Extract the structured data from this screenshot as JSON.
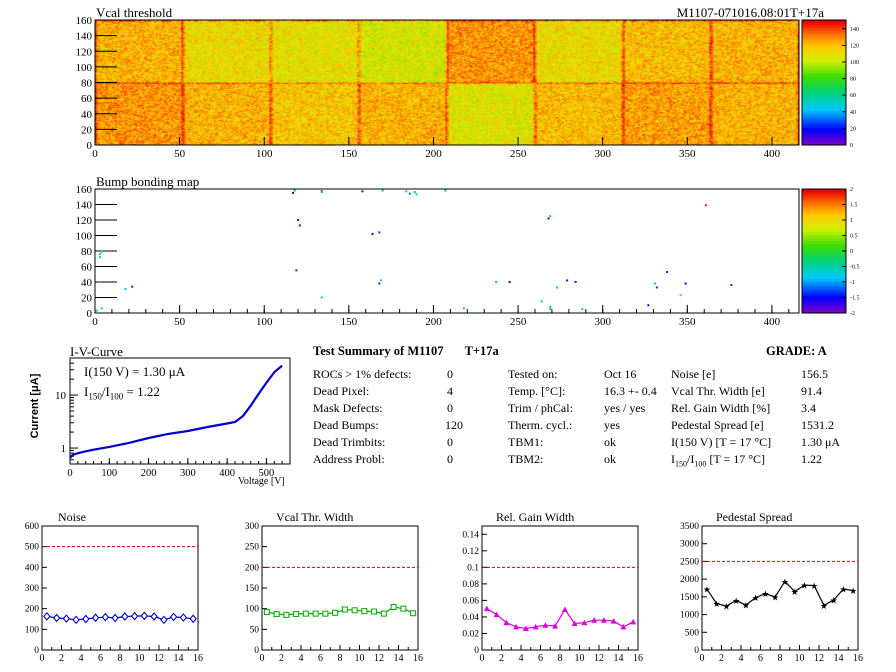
{
  "header": {
    "module_id": "M1107-071016.08:01T+17a"
  },
  "vcal_map": {
    "title": "Vcal threshold",
    "x_ticks": [
      "0",
      "50",
      "100",
      "150",
      "200",
      "250",
      "300",
      "350",
      "400"
    ],
    "y_ticks": [
      "0",
      "20",
      "40",
      "60",
      "80",
      "100",
      "120",
      "140",
      "160"
    ],
    "color_scale": [
      "0",
      "20",
      "40",
      "60",
      "80",
      "100",
      "120",
      "140"
    ],
    "chart_data": {
      "type": "heatmap",
      "title": "Vcal threshold",
      "xlim": [
        0,
        416
      ],
      "ylim": [
        0,
        160
      ],
      "zlim": [
        0,
        150
      ],
      "rocs_bottom_mean": [
        128,
        122,
        118,
        122,
        108,
        120,
        126,
        122
      ],
      "rocs_top_mean": [
        122,
        112,
        110,
        106,
        128,
        112,
        120,
        122
      ]
    }
  },
  "bump_map": {
    "title": "Bump bonding map",
    "x_ticks": [
      "0",
      "50",
      "100",
      "150",
      "200",
      "250",
      "300",
      "350",
      "400"
    ],
    "y_ticks": [
      "0",
      "20",
      "40",
      "60",
      "80",
      "100",
      "120",
      "140",
      "160"
    ],
    "color_scale": [
      "-2",
      "-1.5",
      "-1",
      "-0.5",
      "0",
      "0.5",
      "1",
      "1.5",
      "2"
    ],
    "chart_data": {
      "type": "scatter",
      "title": "Bump bonding map",
      "xlim": [
        0,
        416
      ],
      "ylim": [
        0,
        160
      ],
      "zlim": [
        -2,
        2
      ],
      "points": [
        {
          "x": 3,
          "y": 76,
          "z": -0.3
        },
        {
          "x": 3,
          "y": 72,
          "z": -0.5
        },
        {
          "x": 4,
          "y": 79,
          "z": -0.7
        },
        {
          "x": 3,
          "y": 40,
          "z": 0.1
        },
        {
          "x": 1,
          "y": 3,
          "z": -0.9
        },
        {
          "x": 4,
          "y": 6,
          "z": -0.6
        },
        {
          "x": 18,
          "y": 31,
          "z": -0.8
        },
        {
          "x": 22,
          "y": 34,
          "z": -1.9
        },
        {
          "x": 117,
          "y": 155,
          "z": -1.5
        },
        {
          "x": 118,
          "y": 158,
          "z": -0.4
        },
        {
          "x": 120,
          "y": 120,
          "z": -1.9
        },
        {
          "x": 121,
          "y": 113,
          "z": -1.8
        },
        {
          "x": 119,
          "y": 55,
          "z": -1.9
        },
        {
          "x": 134,
          "y": 157,
          "z": -1.5
        },
        {
          "x": 134,
          "y": 156,
          "z": -0.3
        },
        {
          "x": 134,
          "y": 20,
          "z": -0.9
        },
        {
          "x": 158,
          "y": 157,
          "z": -1.9
        },
        {
          "x": 164,
          "y": 102,
          "z": -1.5
        },
        {
          "x": 168,
          "y": 104,
          "z": -1.3
        },
        {
          "x": 168,
          "y": 38,
          "z": -1.9
        },
        {
          "x": 169,
          "y": 42,
          "z": -0.4
        },
        {
          "x": 170,
          "y": 158,
          "z": -0.2
        },
        {
          "x": 184,
          "y": 157,
          "z": -0.6
        },
        {
          "x": 186,
          "y": 154,
          "z": -1.2
        },
        {
          "x": 189,
          "y": 156,
          "z": -0.3
        },
        {
          "x": 190,
          "y": 153,
          "z": -0.9
        },
        {
          "x": 207,
          "y": 158,
          "z": -0.1
        },
        {
          "x": 218,
          "y": 6,
          "z": -0.3
        },
        {
          "x": 237,
          "y": 40,
          "z": -0.3
        },
        {
          "x": 245,
          "y": 40,
          "z": -1.5
        },
        {
          "x": 268,
          "y": 122,
          "z": -1.8
        },
        {
          "x": 269,
          "y": 125,
          "z": -0.3
        },
        {
          "x": 264,
          "y": 15,
          "z": -0.4
        },
        {
          "x": 269,
          "y": 8,
          "z": -1.0
        },
        {
          "x": 269,
          "y": 5,
          "z": -0.6
        },
        {
          "x": 273,
          "y": 33,
          "z": -0.8
        },
        {
          "x": 279,
          "y": 42,
          "z": -1.7
        },
        {
          "x": 284,
          "y": 40,
          "z": -1.4
        },
        {
          "x": 288,
          "y": 5,
          "z": -0.8
        },
        {
          "x": 327,
          "y": 10,
          "z": -1.5
        },
        {
          "x": 331,
          "y": 38,
          "z": -0.5
        },
        {
          "x": 332,
          "y": 33,
          "z": -1.9
        },
        {
          "x": 338,
          "y": 53,
          "z": -1.8
        },
        {
          "x": 346,
          "y": 23,
          "z": 0.2
        },
        {
          "x": 349,
          "y": 38,
          "z": -1.5
        },
        {
          "x": 361,
          "y": 139,
          "z": 1.9
        },
        {
          "x": 376,
          "y": 36,
          "z": -1.9
        }
      ]
    }
  },
  "iv_curve": {
    "title": "I-V-Curve",
    "annotation_1": "I(150 V) = 1.30 μA",
    "annotation_2_prefix": "I",
    "annotation_2_sub1": "150",
    "annotation_2_slash": "/I",
    "annotation_2_sub2": "100",
    "annotation_2_value": " =  1.22",
    "ylabel": "Current [μA]",
    "xlabel": "Voltage [V]",
    "x_ticks": [
      "0",
      "100",
      "200",
      "300",
      "400",
      "500"
    ],
    "y_ticks": [
      "1",
      "10"
    ],
    "chart_data": {
      "type": "line",
      "title": "I-V-Curve",
      "xlabel": "Voltage [V]",
      "ylabel": "Current [μA]",
      "xlim": [
        0,
        560
      ],
      "ylim": [
        0.5,
        50
      ],
      "y_scale": "log",
      "x": [
        0,
        5,
        10,
        20,
        40,
        60,
        80,
        100,
        150,
        200,
        250,
        300,
        350,
        400,
        420,
        440,
        460,
        480,
        500,
        520,
        540
      ],
      "y": [
        0.65,
        0.72,
        0.76,
        0.8,
        0.87,
        0.93,
        0.99,
        1.05,
        1.25,
        1.55,
        1.85,
        2.1,
        2.5,
        2.9,
        3.1,
        4.0,
        6.3,
        10.5,
        17.0,
        27.0,
        36.0
      ]
    }
  },
  "summary": {
    "title": "Test Summary of M1107",
    "test_label": "T+17a",
    "grade_label": "GRADE:  A",
    "col1": [
      {
        "label": "ROCs > 1% defects:",
        "value": "0"
      },
      {
        "label": "Dead Pixel:",
        "value": "4"
      },
      {
        "label": "Mask Defects:",
        "value": "0"
      },
      {
        "label": "Dead Bumps:",
        "value": "120"
      },
      {
        "label": "Dead Trimbits:",
        "value": "0"
      },
      {
        "label": "Address Probl:",
        "value": "0"
      }
    ],
    "col2": [
      {
        "label": "Tested on:",
        "value": "Oct 16"
      },
      {
        "label": "Temp. [°C]:",
        "value": "16.3 +- 0.4"
      },
      {
        "label": "Trim / phCal:",
        "value": "yes / yes"
      },
      {
        "label": "Therm. cycl.:",
        "value": "yes"
      },
      {
        "label": "TBM1:",
        "value": "ok"
      },
      {
        "label": "TBM2:",
        "value": "ok"
      }
    ],
    "col3": [
      {
        "label": "Noise [e]",
        "value": "156.5"
      },
      {
        "label": "Vcal Thr. Width [e]",
        "value": "91.4"
      },
      {
        "label": "Rel. Gain Width [%]",
        "value": "3.4"
      },
      {
        "label": "Pedestal Spread [e]",
        "value": "1531.2"
      },
      {
        "label": "I(150 V) [T = 17 °C]",
        "value": "1.30 μA"
      },
      {
        "label_prefix": "I",
        "label_sub1": "150",
        "label_mid": "/I",
        "label_sub2": "100",
        "label_suffix": "  [T = 17 °C]",
        "value": "1.22"
      }
    ]
  },
  "small_plots": {
    "x_ticks": [
      "0",
      "2",
      "4",
      "6",
      "8",
      "10",
      "12",
      "14",
      "16"
    ],
    "plots": [
      {
        "title": "Noise",
        "y_ticks": [
          "0",
          "100",
          "200",
          "300",
          "400",
          "500",
          "600"
        ],
        "chart_data": {
          "type": "line",
          "title": "Noise",
          "xlim": [
            0,
            16
          ],
          "ylim": [
            0,
            600
          ],
          "threshold": 500,
          "marker": "diamond",
          "color": "#0000cc",
          "x": [
            0.5,
            1.5,
            2.5,
            3.5,
            4.5,
            5.5,
            6.5,
            7.5,
            8.5,
            9.5,
            10.5,
            11.5,
            12.5,
            13.5,
            14.5,
            15.5
          ],
          "y": [
            163,
            155,
            152,
            146,
            150,
            156,
            159,
            155,
            162,
            164,
            165,
            162,
            146,
            160,
            157,
            151
          ]
        }
      },
      {
        "title": "Vcal Thr. Width",
        "y_ticks": [
          "0",
          "50",
          "100",
          "150",
          "200",
          "250",
          "300"
        ],
        "chart_data": {
          "type": "line",
          "title": "Vcal Thr. Width",
          "xlim": [
            0,
            16
          ],
          "ylim": [
            0,
            300
          ],
          "threshold": 200,
          "marker": "square",
          "color": "#00aa00",
          "x": [
            0.5,
            1.5,
            2.5,
            3.5,
            4.5,
            5.5,
            6.5,
            7.5,
            8.5,
            9.5,
            10.5,
            11.5,
            12.5,
            13.5,
            14.5,
            15.5
          ],
          "y": [
            92,
            87,
            85,
            87,
            88,
            88,
            88,
            90,
            98,
            96,
            94,
            93,
            88,
            104,
            100,
            89
          ]
        }
      },
      {
        "title": "Rel. Gain Width",
        "y_ticks": [
          "0",
          "0.02",
          "0.04",
          "0.06",
          "0.08",
          "0.1",
          "0.12",
          "0.14"
        ],
        "chart_data": {
          "type": "line",
          "title": "Rel. Gain Width",
          "xlim": [
            0,
            16
          ],
          "ylim": [
            0,
            0.15
          ],
          "threshold": 0.1,
          "marker": "triangle",
          "color": "#dd00dd",
          "x": [
            0.5,
            1.5,
            2.5,
            3.5,
            4.5,
            5.5,
            6.5,
            7.5,
            8.5,
            9.5,
            10.5,
            11.5,
            12.5,
            13.5,
            14.5,
            15.5
          ],
          "y": [
            0.05,
            0.043,
            0.033,
            0.028,
            0.026,
            0.028,
            0.03,
            0.029,
            0.049,
            0.032,
            0.033,
            0.036,
            0.036,
            0.035,
            0.028,
            0.034
          ]
        }
      },
      {
        "title": "Pedestal Spread",
        "y_ticks": [
          "0",
          "500",
          "1000",
          "1500",
          "2000",
          "2500",
          "3000",
          "3500"
        ],
        "chart_data": {
          "type": "line",
          "title": "Pedestal Spread",
          "xlim": [
            0,
            16
          ],
          "ylim": [
            0,
            3500
          ],
          "threshold": 2500,
          "marker": "star",
          "color": "#000000",
          "x": [
            0.5,
            1.5,
            2.5,
            3.5,
            4.5,
            5.5,
            6.5,
            7.5,
            8.5,
            9.5,
            10.5,
            11.5,
            12.5,
            13.5,
            14.5,
            15.5
          ],
          "y": [
            1720,
            1310,
            1240,
            1400,
            1270,
            1480,
            1590,
            1500,
            1940,
            1650,
            1830,
            1820,
            1260,
            1410,
            1720,
            1680
          ]
        }
      }
    ]
  }
}
